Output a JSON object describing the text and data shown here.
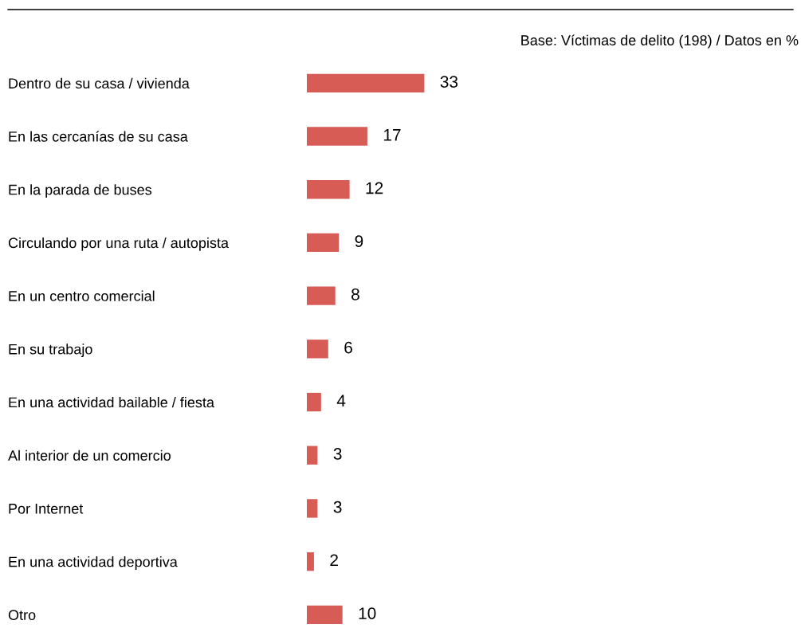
{
  "chart_data": {
    "type": "bar",
    "orientation": "horizontal",
    "data_labels": true,
    "color": "#d75c55",
    "annotations": [
      "Base: Víctimas de delito (198) / Datos en %"
    ],
    "categories": [
      "Dentro de su casa / vivienda",
      "En las cercanías de su casa",
      "En la parada de buses",
      "Circulando por una ruta / autopista",
      "En un centro comercial",
      "En su trabajo",
      "En una actividad bailable / fiesta",
      "Al interior de un comercio",
      "Por Internet",
      "En una actividad deportiva",
      "Otro"
    ],
    "values": [
      33,
      17,
      12,
      9,
      8,
      6,
      4,
      3,
      3,
      2,
      10
    ]
  }
}
